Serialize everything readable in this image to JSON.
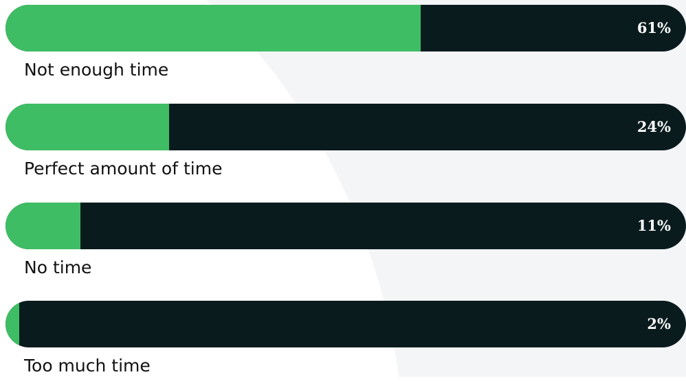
{
  "colors": {
    "fill": "#3ebd64",
    "track": "#0a1b1e",
    "value_text": "#ffffff",
    "label_text": "#111111",
    "background_curve": "#f4f5f7"
  },
  "chart_data": {
    "type": "bar",
    "orientation": "horizontal",
    "categories": [
      "Not enough time",
      "Perfect amount of time",
      "No time",
      "Too much time"
    ],
    "values": [
      61,
      24,
      11,
      2
    ],
    "value_labels": [
      "61%",
      "24%",
      "11%",
      "2%"
    ],
    "xlim": [
      0,
      100
    ],
    "unit": "%",
    "grid": false,
    "legend": "none"
  }
}
